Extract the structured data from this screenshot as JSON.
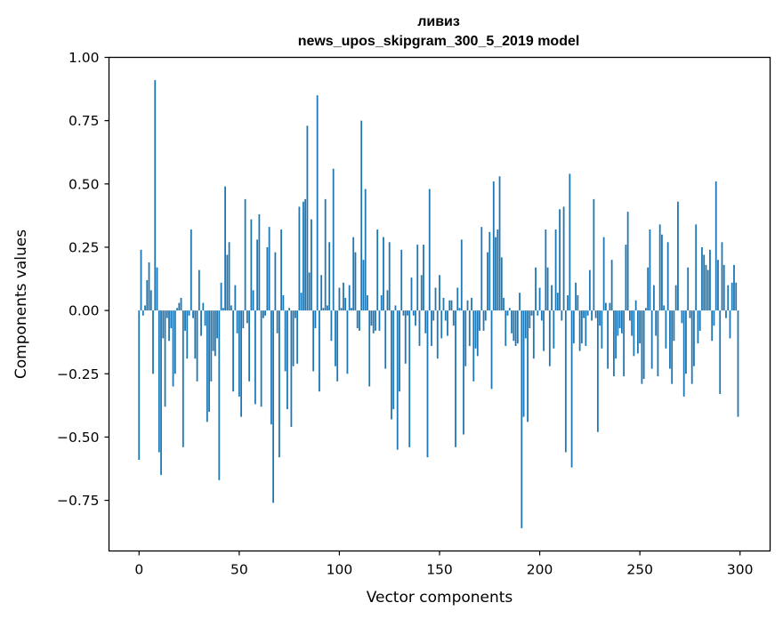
{
  "chart_data": {
    "type": "bar",
    "title_lines": [
      "ливиз",
      "news_upos_skipgram_300_5_2019 model"
    ],
    "xlabel": "Vector components",
    "ylabel": "Components values",
    "xlim": [
      -15,
      315
    ],
    "ylim": [
      -0.95,
      1.0
    ],
    "x_ticks": [
      0,
      50,
      100,
      150,
      200,
      250,
      300
    ],
    "x_tick_labels": [
      "0",
      "50",
      "100",
      "150",
      "200",
      "250",
      "300"
    ],
    "y_ticks": [
      1.0,
      0.75,
      0.5,
      0.25,
      0.0,
      -0.25,
      -0.5,
      -0.75
    ],
    "y_tick_labels": [
      "1.00",
      "0.75",
      "0.50",
      "0.25",
      "0.00",
      "−0.25",
      "−0.50",
      "−0.75"
    ],
    "bar_color": "#1f77b4",
    "grid": false,
    "series": [
      {
        "name": "components",
        "values": [
          -0.59,
          0.24,
          -0.02,
          0.02,
          0.12,
          0.19,
          0.08,
          -0.25,
          0.91,
          0.17,
          -0.56,
          -0.65,
          -0.11,
          -0.38,
          -0.03,
          -0.12,
          -0.07,
          -0.3,
          -0.25,
          0.01,
          0.03,
          0.05,
          -0.54,
          -0.08,
          -0.19,
          -0.02,
          0.32,
          -0.03,
          -0.19,
          -0.28,
          0.16,
          -0.1,
          0.03,
          -0.06,
          -0.44,
          -0.4,
          -0.28,
          -0.16,
          -0.18,
          -0.11,
          -0.67,
          0.11,
          0.01,
          0.49,
          0.22,
          0.27,
          0.02,
          -0.32,
          0.1,
          -0.09,
          -0.34,
          -0.42,
          -0.07,
          0.44,
          -0.05,
          -0.28,
          0.36,
          0.08,
          -0.37,
          0.28,
          0.38,
          -0.38,
          -0.03,
          -0.02,
          0.25,
          0.33,
          -0.45,
          -0.76,
          0.23,
          -0.09,
          -0.58,
          0.32,
          0.06,
          -0.24,
          -0.39,
          0.01,
          -0.46,
          -0.22,
          -0.03,
          -0.21,
          0.41,
          0.07,
          0.43,
          0.44,
          0.73,
          0.15,
          0.36,
          -0.24,
          -0.07,
          0.85,
          -0.32,
          0.14,
          0.01,
          0.44,
          0.02,
          0.27,
          -0.12,
          0.56,
          -0.22,
          -0.28,
          0.09,
          0.01,
          0.11,
          0.05,
          -0.25,
          0.1,
          0.01,
          0.29,
          0.23,
          -0.07,
          -0.08,
          0.75,
          0.2,
          0.48,
          0.06,
          -0.3,
          -0.06,
          -0.09,
          -0.08,
          0.32,
          -0.08,
          0.06,
          0.29,
          -0.23,
          0.08,
          0.27,
          -0.43,
          -0.39,
          0.02,
          -0.55,
          -0.32,
          0.24,
          -0.02,
          -0.21,
          -0.02,
          -0.54,
          0.13,
          -0.02,
          -0.06,
          0.26,
          -0.14,
          0.14,
          0.26,
          -0.09,
          -0.58,
          0.48,
          -0.14,
          -0.04,
          0.09,
          -0.19,
          0.14,
          -0.11,
          0.05,
          -0.04,
          -0.1,
          0.04,
          0.04,
          -0.06,
          -0.54,
          0.09,
          0.01,
          0.28,
          -0.49,
          -0.22,
          0.04,
          -0.14,
          0.05,
          -0.28,
          -0.15,
          -0.18,
          -0.08,
          0.33,
          -0.08,
          -0.04,
          0.23,
          0.31,
          -0.31,
          0.51,
          0.29,
          0.32,
          0.53,
          0.21,
          0.05,
          -0.14,
          -0.02,
          0.01,
          -0.09,
          -0.12,
          -0.14,
          -0.13,
          0.07,
          -0.86,
          -0.42,
          -0.11,
          -0.44,
          -0.07,
          -0.02,
          -0.19,
          0.17,
          -0.02,
          0.09,
          -0.04,
          -0.16,
          0.32,
          0.17,
          -0.22,
          0.1,
          -0.15,
          0.32,
          0.07,
          0.4,
          -0.04,
          0.41,
          -0.56,
          0.06,
          0.54,
          -0.62,
          -0.13,
          0.11,
          0.06,
          -0.16,
          -0.13,
          -0.03,
          -0.14,
          -0.02,
          0.16,
          -0.04,
          0.44,
          -0.03,
          -0.48,
          -0.06,
          -0.15,
          0.29,
          0.03,
          -0.23,
          0.03,
          0.2,
          -0.26,
          -0.19,
          -0.1,
          -0.07,
          -0.09,
          -0.26,
          0.26,
          0.39,
          -0.04,
          -0.1,
          -0.18,
          0.04,
          -0.17,
          -0.13,
          -0.29,
          -0.27,
          0.01,
          0.17,
          0.32,
          -0.23,
          0.1,
          -0.1,
          -0.26,
          0.34,
          0.3,
          0.02,
          -0.15,
          0.27,
          -0.23,
          -0.29,
          -0.12,
          0.1,
          0.43,
          0.0,
          -0.05,
          -0.34,
          -0.25,
          0.17,
          -0.03,
          -0.29,
          -0.22,
          0.34,
          -0.13,
          -0.08,
          0.25,
          0.22,
          0.18,
          0.16,
          0.24,
          -0.12,
          -0.06,
          0.51,
          0.2,
          -0.33,
          0.27,
          0.18,
          -0.03,
          0.1,
          -0.11,
          0.11,
          0.18,
          0.11,
          -0.42
        ]
      }
    ]
  }
}
